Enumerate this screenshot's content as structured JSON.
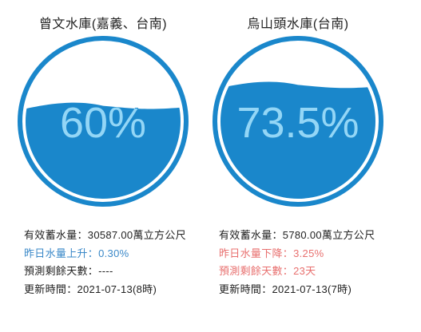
{
  "reservoirs": [
    {
      "name": "曾文水庫(嘉義、台南)",
      "percent_label": "60%",
      "level": 0.6,
      "storage": "有效蓄水量：30587.00萬立方公尺",
      "change": "昨日水量上升：0.30%",
      "change_dir": "up",
      "days": "預測剩餘天數：----",
      "days_warn": false,
      "updated": "更新時間：2021-07-13(8時)"
    },
    {
      "name": "烏山頭水庫(台南)",
      "percent_label": "73.5%",
      "level": 0.735,
      "storage": "有效蓄水量：5780.00萬立方公尺",
      "change": "昨日水量下降：3.25%",
      "change_dir": "down",
      "days": "預測剩餘天數：23天",
      "days_warn": true,
      "updated": "更新時間：2021-07-13(7時)"
    }
  ],
  "colors": {
    "water": "#1a87cb",
    "ring": "#1a87cb",
    "text_on_water": "#93d6f6",
    "text_on_white": "#1a87cb",
    "up": "#3a88c8",
    "down": "#e8706f"
  }
}
